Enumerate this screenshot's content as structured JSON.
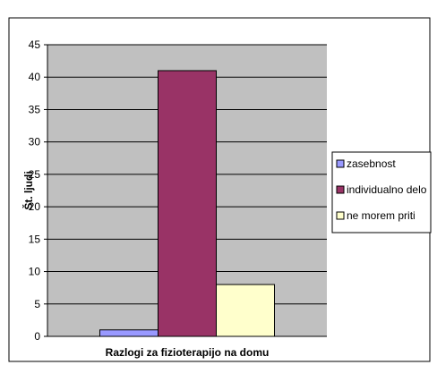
{
  "chart_data": {
    "type": "bar",
    "categories": [
      "Razlogi za fizioterapijo na domu"
    ],
    "series": [
      {
        "name": "zasebnost",
        "values": [
          1
        ],
        "color": "#9999ff"
      },
      {
        "name": "individualno delo",
        "values": [
          41
        ],
        "color": "#993366"
      },
      {
        "name": "ne morem priti",
        "values": [
          8
        ],
        "color": "#ffffcc"
      }
    ],
    "title": "",
    "xlabel": "Razlogi za fizioterapijo na domu",
    "ylabel": "Št. ljudi",
    "ylim": [
      0,
      45
    ],
    "yticks": [
      "0",
      "5",
      "10",
      "15",
      "20",
      "25",
      "30",
      "35",
      "40",
      "45"
    ],
    "grid": true,
    "legend_position": "right",
    "plot_background": "#c0c0c0"
  }
}
